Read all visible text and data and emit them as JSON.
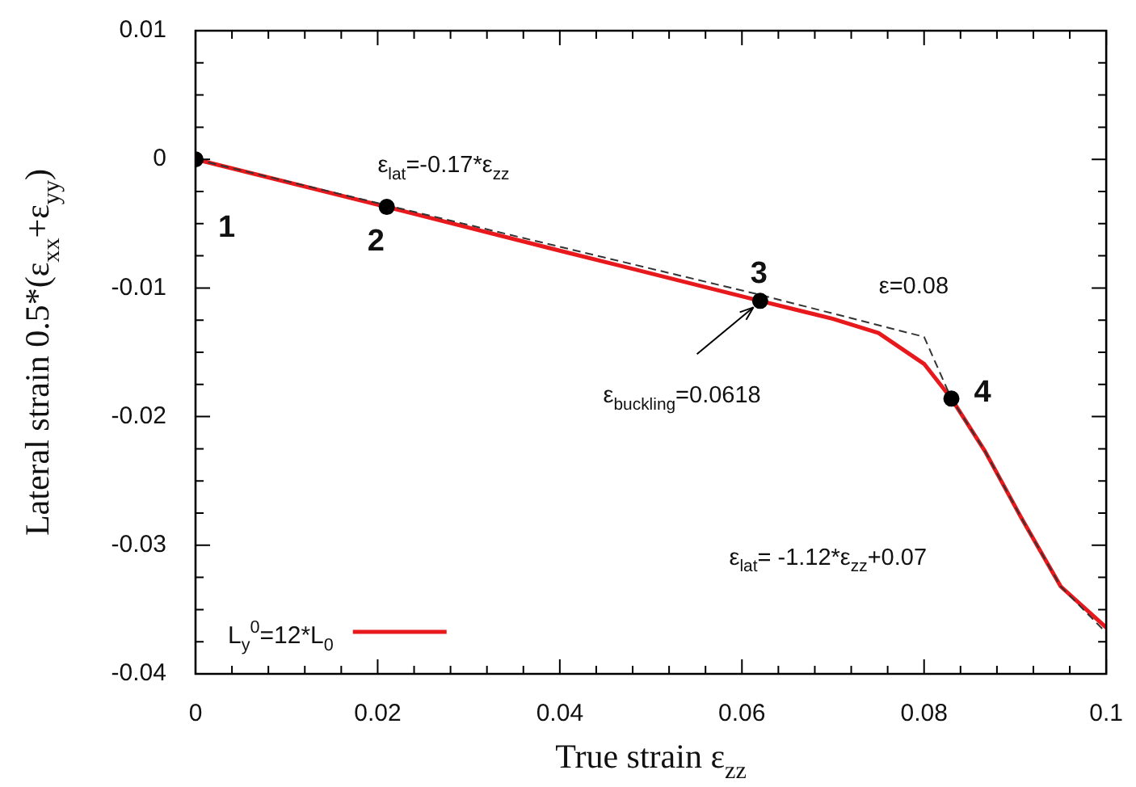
{
  "chart_data": {
    "type": "line",
    "xlabel": "True strain ε$_{zz}$",
    "ylabel": "Lateral strain 0.5*(ε$_{xx}$+ε$_{yy}$)",
    "xlim": [
      0,
      0.1
    ],
    "ylim": [
      -0.04,
      0.01
    ],
    "xticks": [
      0,
      {
        "value": 0.004,
        "label": null
      },
      {
        "value": 0.008,
        "label": null
      },
      {
        "value": 0.012,
        "label": null
      },
      {
        "value": 0.016,
        "label": null
      },
      0.02,
      {
        "value": 0.024,
        "label": null
      },
      {
        "value": 0.028,
        "label": null
      },
      {
        "value": 0.032,
        "label": null
      },
      {
        "value": 0.036,
        "label": null
      },
      0.04,
      {
        "value": 0.044,
        "label": null
      },
      {
        "value": 0.048,
        "label": null
      },
      {
        "value": 0.052,
        "label": null
      },
      {
        "value": 0.056,
        "label": null
      },
      0.06,
      {
        "value": 0.064,
        "label": null
      },
      {
        "value": 0.068,
        "label": null
      },
      {
        "value": 0.072,
        "label": null
      },
      {
        "value": 0.076,
        "label": null
      },
      0.08,
      {
        "value": 0.084,
        "label": null
      },
      {
        "value": 0.088,
        "label": null
      },
      {
        "value": 0.092,
        "label": null
      },
      {
        "value": 0.096,
        "label": null
      },
      0.1
    ],
    "yticks": [
      -0.04,
      {
        "value": -0.0375,
        "label": null
      },
      {
        "value": -0.035,
        "label": null
      },
      {
        "value": -0.0325,
        "label": null
      },
      -0.03,
      {
        "value": -0.0275,
        "label": null
      },
      {
        "value": -0.025,
        "label": null
      },
      {
        "value": -0.0225,
        "label": null
      },
      -0.02,
      {
        "value": -0.0175,
        "label": null
      },
      {
        "value": -0.015,
        "label": null
      },
      {
        "value": -0.0125,
        "label": null
      },
      -0.01,
      {
        "value": -0.0075,
        "label": null
      },
      {
        "value": -0.005,
        "label": null
      },
      {
        "value": -0.0025,
        "label": null
      },
      0,
      {
        "value": 0.0025,
        "label": null
      },
      {
        "value": 0.005,
        "label": null
      },
      {
        "value": 0.0075,
        "label": null
      },
      0.01
    ],
    "legend": "bottom left",
    "series": [
      {
        "name": "L$_{y}$$^{0}$=12*L$_{0}$",
        "color": "#e8191c",
        "line_style": "solid",
        "marker": "none",
        "x": [
          0,
          0.021,
          0.04,
          0.062,
          0.066,
          0.07,
          0.075,
          0.08,
          0.083,
          0.0867,
          0.0907,
          0.095,
          0.1
        ],
        "values": [
          0,
          -0.0037,
          -0.0071,
          -0.011,
          -0.0117,
          -0.0124,
          -0.0135,
          -0.0159,
          -0.0186,
          -0.0227,
          -0.0279,
          -0.0332,
          -0.0364
        ]
      },
      {
        "color": "#333333",
        "line_style": "dashed",
        "marker": "none",
        "x": [
          0,
          0.0618,
          0.08,
          0.083,
          0.0867,
          0.0907,
          0.095,
          0.1
        ],
        "values": [
          0,
          -0.0105,
          -0.0138,
          -0.0186,
          -0.0227,
          -0.0279,
          -0.0332,
          -0.0368
        ]
      },
      {
        "type": "scatter",
        "color": "#000000",
        "marker": "circle",
        "x": [
          0,
          0.021,
          0.062,
          0.083
        ],
        "values": [
          0,
          -0.0037,
          -0.011,
          -0.0186
        ]
      }
    ],
    "annotations": [
      {
        "text": "1",
        "x": 0,
        "y": 0
      },
      {
        "text": "2",
        "x": 0.021,
        "y": -0.0037
      },
      {
        "text": "3",
        "x": 0.062,
        "y": -0.011
      },
      {
        "text": "4",
        "x": 0.083,
        "y": -0.0186
      },
      "ε$_{lat}$=-0.17*ε$_{zz}$",
      {
        "text": "ε$_{buckling}$=0.0618",
        "x": 0.0618,
        "y": -0.011
      },
      {
        "text": "ε=0.08",
        "x": 0.08,
        "y": -0.0138
      },
      "ε$_{lat}$= -1.12*ε$_{zz}$+0.07"
    ]
  }
}
